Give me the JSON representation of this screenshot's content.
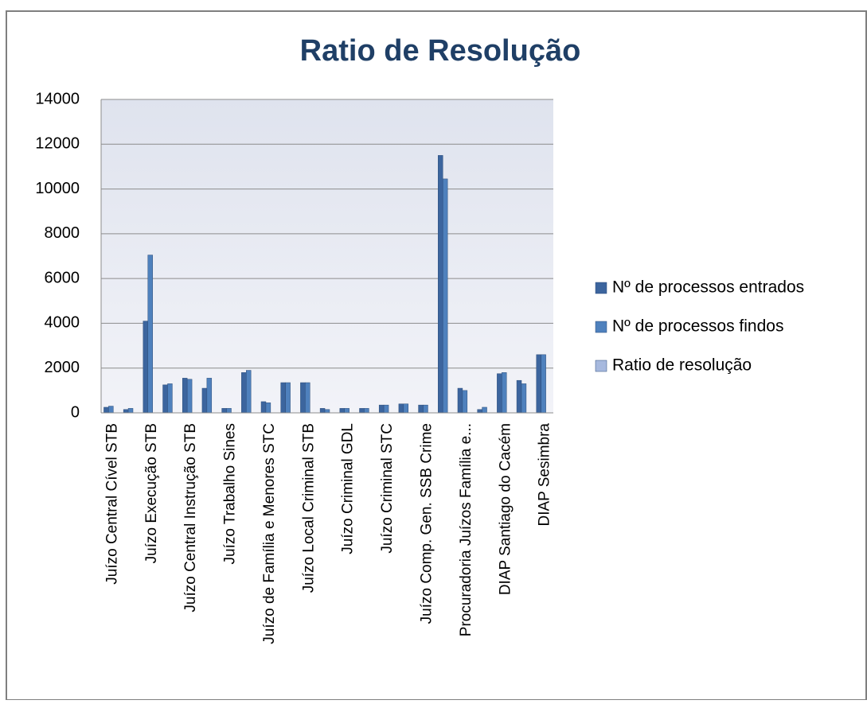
{
  "chart_data": {
    "type": "bar",
    "title": "Ratio de Resolução",
    "categories": [
      "Juízo Central Cível STB",
      null,
      "Juízo Execução STB",
      null,
      "Juízo Central Instrução STB",
      null,
      "Juízo Trabalho Sines",
      null,
      "Juízo de Família e Menores STC",
      null,
      "Juízo Local Criminal STB",
      null,
      "Juízo Criminal GDL",
      null,
      "Juízo Criminal STC",
      null,
      "Juízo Comp. Gen. SSB Crime",
      null,
      "Procuradoria Juízos Família e...",
      null,
      "DIAP Santiago do Cacém",
      null,
      "DIAP Sesimbra"
    ],
    "series": [
      {
        "name": "Nº de processos entrados",
        "color": "#3c659e",
        "values": [
          250,
          150,
          4100,
          1250,
          1550,
          1100,
          200,
          1800,
          500,
          1350,
          1350,
          200,
          200,
          200,
          350,
          400,
          350,
          11500,
          1100,
          150,
          1750,
          1450,
          2600
        ]
      },
      {
        "name": "Nº de processos findos",
        "color": "#4f81bd",
        "values": [
          300,
          200,
          7050,
          1300,
          1500,
          1550,
          200,
          1900,
          450,
          1350,
          1350,
          150,
          200,
          200,
          350,
          400,
          350,
          10450,
          1000,
          250,
          1800,
          1300,
          2600
        ]
      },
      {
        "name": "Ratio de resolução",
        "color": "#a7b9de",
        "values": [
          1,
          1,
          2,
          1,
          1,
          1,
          1,
          1,
          1,
          1,
          1,
          1,
          1,
          1,
          1,
          1,
          1,
          1,
          1,
          2,
          1,
          1,
          1
        ]
      }
    ],
    "ylim": [
      0,
      14000
    ],
    "yticks": [
      0,
      2000,
      4000,
      6000,
      8000,
      10000,
      12000,
      14000
    ],
    "grid": true,
    "legend": "right"
  }
}
